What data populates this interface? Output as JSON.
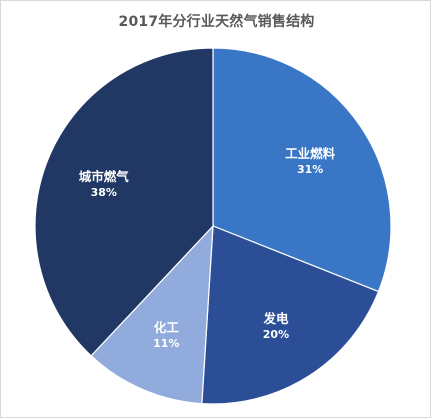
{
  "chart_data": {
    "type": "pie",
    "title": "2017年分行业天然气销售结构",
    "categories": [
      "工业燃料",
      "发电",
      "化工",
      "城市燃气"
    ],
    "values": [
      31,
      20,
      11,
      38
    ],
    "labels": [
      "31%",
      "20%",
      "11%",
      "38%"
    ],
    "colors": [
      "#3a76c6",
      "#2b4e97",
      "#92abdd",
      "#213764"
    ],
    "start_angle_deg": 0,
    "direction": "clockwise",
    "data_labels_inside": true
  }
}
